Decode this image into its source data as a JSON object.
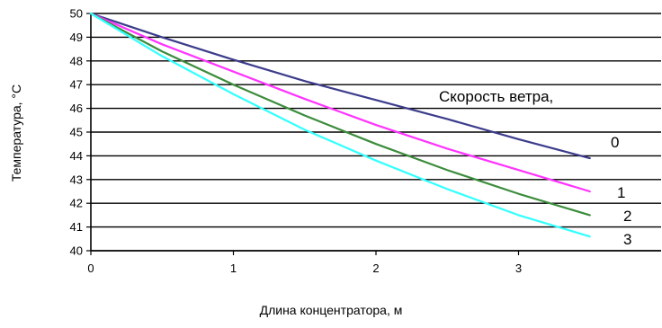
{
  "chart_data": {
    "type": "line",
    "xlabel": "Длина концентратора, м",
    "ylabel": "Температура, °С",
    "legend_title": "Скорость ветра,",
    "xlim": [
      0,
      4
    ],
    "ylim": [
      40,
      50
    ],
    "x_ticks": [
      "0",
      "1",
      "2",
      "3"
    ],
    "y_ticks": [
      "40",
      "41",
      "42",
      "43",
      "44",
      "45",
      "46",
      "47",
      "48",
      "49",
      "50"
    ],
    "grid": "horizontal",
    "series": [
      {
        "name": "0",
        "color": "#3c3c8c",
        "x": [
          0,
          0.5,
          1,
          1.5,
          2,
          2.5,
          3,
          3.5
        ],
        "y": [
          50,
          49.0,
          48.05,
          47.15,
          46.35,
          45.55,
          44.7,
          43.9
        ]
      },
      {
        "name": "1",
        "color": "#ff33ff",
        "x": [
          0,
          0.5,
          1,
          1.5,
          2,
          2.5,
          3,
          3.5
        ],
        "y": [
          50,
          48.7,
          47.55,
          46.4,
          45.3,
          44.3,
          43.4,
          42.5
        ]
      },
      {
        "name": "2",
        "color": "#3c8c3c",
        "x": [
          0,
          0.5,
          1,
          1.5,
          2,
          2.5,
          3,
          3.5
        ],
        "y": [
          50,
          48.4,
          47.0,
          45.7,
          44.5,
          43.4,
          42.4,
          41.5
        ]
      },
      {
        "name": "3",
        "color": "#33ffff",
        "x": [
          0,
          0.5,
          1,
          1.5,
          2,
          2.5,
          3,
          3.5
        ],
        "y": [
          50,
          48.2,
          46.6,
          45.1,
          43.8,
          42.6,
          41.5,
          40.6
        ]
      }
    ]
  }
}
